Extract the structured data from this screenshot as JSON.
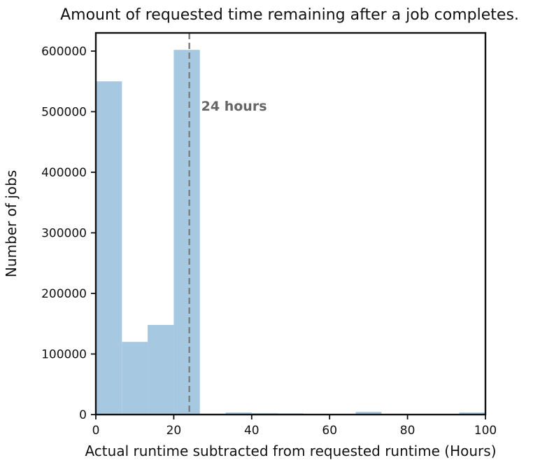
{
  "colors": {
    "bar": "#a6c8e0",
    "frame": "#111111",
    "reference_line": "#808080",
    "annotation": "#666666"
  },
  "chart_data": {
    "type": "bar",
    "title": "Amount of requested time remaining after a job completes.",
    "xlabel": "Actual runtime subtracted from requested runtime (Hours)",
    "ylabel": "Number of jobs",
    "xlim": [
      0,
      100
    ],
    "ylim": [
      0,
      630000
    ],
    "x_ticks": [
      0,
      20,
      40,
      60,
      80,
      100
    ],
    "y_ticks": [
      0,
      100000,
      200000,
      300000,
      400000,
      500000,
      600000
    ],
    "grid": false,
    "bins": [
      {
        "start": 0,
        "end": 6.7,
        "value": 550000
      },
      {
        "start": 6.7,
        "end": 13.3,
        "value": 120000
      },
      {
        "start": 13.3,
        "end": 20,
        "value": 148000
      },
      {
        "start": 20,
        "end": 26.7,
        "value": 602000
      },
      {
        "start": 26.7,
        "end": 33.3,
        "value": 1500
      },
      {
        "start": 33.3,
        "end": 40,
        "value": 3500
      },
      {
        "start": 40,
        "end": 46.7,
        "value": 2500
      },
      {
        "start": 46.7,
        "end": 53.3,
        "value": 2000
      },
      {
        "start": 53.3,
        "end": 60,
        "value": 1000
      },
      {
        "start": 60,
        "end": 66.7,
        "value": 1000
      },
      {
        "start": 66.7,
        "end": 73.3,
        "value": 4500
      },
      {
        "start": 73.3,
        "end": 80,
        "value": 1200
      },
      {
        "start": 80,
        "end": 86.7,
        "value": 1000
      },
      {
        "start": 86.7,
        "end": 93.3,
        "value": 1000
      },
      {
        "start": 93.3,
        "end": 100,
        "value": 3500
      }
    ],
    "reference_line": {
      "x": 24,
      "label": "24 hours",
      "label_y": 510000
    }
  }
}
